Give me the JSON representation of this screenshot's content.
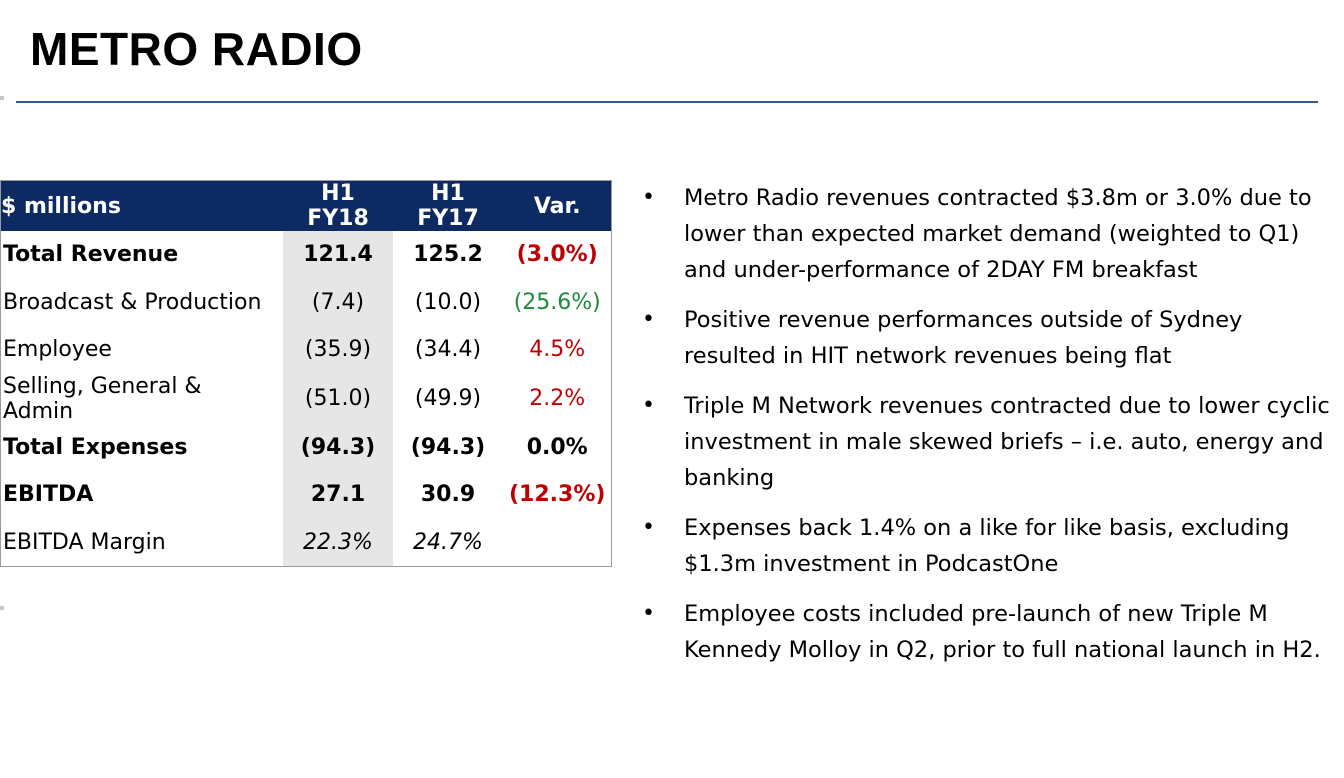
{
  "title": "METRO RADIO",
  "table": {
    "headers": [
      "$ millions",
      "H1 FY18",
      "H1 FY17",
      "Var."
    ],
    "rows": [
      {
        "label": "Total Revenue",
        "fy18": "121.4",
        "fy17": "125.2",
        "var": "(3.0%)",
        "var_color": "#c00000",
        "style": "bold"
      },
      {
        "label": "Broadcast & Production",
        "fy18": "(7.4)",
        "fy17": "(10.0)",
        "var": "(25.6%)",
        "var_color": "#1e8a3c",
        "style": "normal"
      },
      {
        "label": "Employee",
        "fy18": "(35.9)",
        "fy17": "(34.4)",
        "var": "4.5%",
        "var_color": "#c00000",
        "style": "normal"
      },
      {
        "label": "Selling, General & Admin",
        "fy18": "(51.0)",
        "fy17": "(49.9)",
        "var": "2.2%",
        "var_color": "#c00000",
        "style": "normal"
      },
      {
        "label": "Total Expenses",
        "fy18": "(94.3)",
        "fy17": "(94.3)",
        "var": "0.0%",
        "var_color": "#000000",
        "style": "bold"
      },
      {
        "label": "EBITDA",
        "fy18": "27.1",
        "fy17": "30.9",
        "var": "(12.3%)",
        "var_color": "#c00000",
        "style": "bold"
      },
      {
        "label": "EBITDA Margin",
        "fy18": "22.3%",
        "fy17": "24.7%",
        "var": "",
        "var_color": "#000000",
        "style": "italic"
      }
    ]
  },
  "bullets": [
    "Metro Radio revenues contracted $3.8m or 3.0% due to lower than expected market demand (weighted to Q1) and under-performance of 2DAY FM breakfast",
    "Positive revenue performances outside of Sydney resulted in HIT network revenues being flat",
    "Triple M Network revenues contracted due to lower cyclic investment in male skewed briefs – i.e. auto, energy and banking",
    "Expenses back 1.4% on a like for like basis, excluding $1.3m investment in PodcastOne",
    "Employee costs included pre-launch of new Triple M Kennedy Molloy in Q2, prior to full national launch in H2."
  ],
  "bullet_glyph": "•"
}
